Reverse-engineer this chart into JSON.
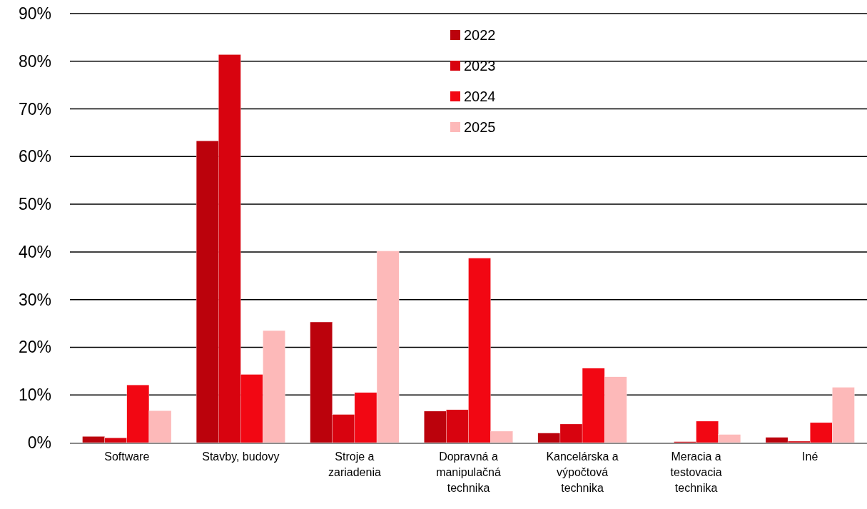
{
  "chart_data": {
    "type": "bar",
    "categories": [
      "Software",
      "Stavby, budovy",
      "Stroje a zariadenia",
      "Dopravná a manipulačná technika",
      "Kancelárska a výpočtová technika",
      "Meracia a testovacia technika",
      "Iné"
    ],
    "series": [
      {
        "name": "2022",
        "color": "#bb020c",
        "values": [
          1.3,
          63.3,
          25.3,
          6.6,
          2.0,
          0,
          1.1
        ]
      },
      {
        "name": "2023",
        "color": "#d8030f",
        "values": [
          1.0,
          81.4,
          5.9,
          6.9,
          3.9,
          0.2,
          0.3
        ]
      },
      {
        "name": "2024",
        "color": "#f20713",
        "values": [
          12.1,
          14.3,
          10.5,
          38.7,
          15.6,
          4.5,
          4.2
        ]
      },
      {
        "name": "2025",
        "color": "#fdb9b9",
        "values": [
          6.7,
          23.5,
          40.2,
          2.4,
          13.8,
          1.7,
          11.6
        ]
      }
    ],
    "ylim": [
      0,
      90
    ],
    "yticks": [
      {
        "value": 0,
        "label": "0%"
      },
      {
        "value": 10,
        "label": "10%"
      },
      {
        "value": 20,
        "label": "20%"
      },
      {
        "value": 30,
        "label": "30%"
      },
      {
        "value": 40,
        "label": "40%"
      },
      {
        "value": 50,
        "label": "50%"
      },
      {
        "value": 60,
        "label": "60%"
      },
      {
        "value": 70,
        "label": "70%"
      },
      {
        "value": 80,
        "label": "80%"
      },
      {
        "value": 90,
        "label": "90%"
      }
    ],
    "grid": "y",
    "legend": "top"
  }
}
